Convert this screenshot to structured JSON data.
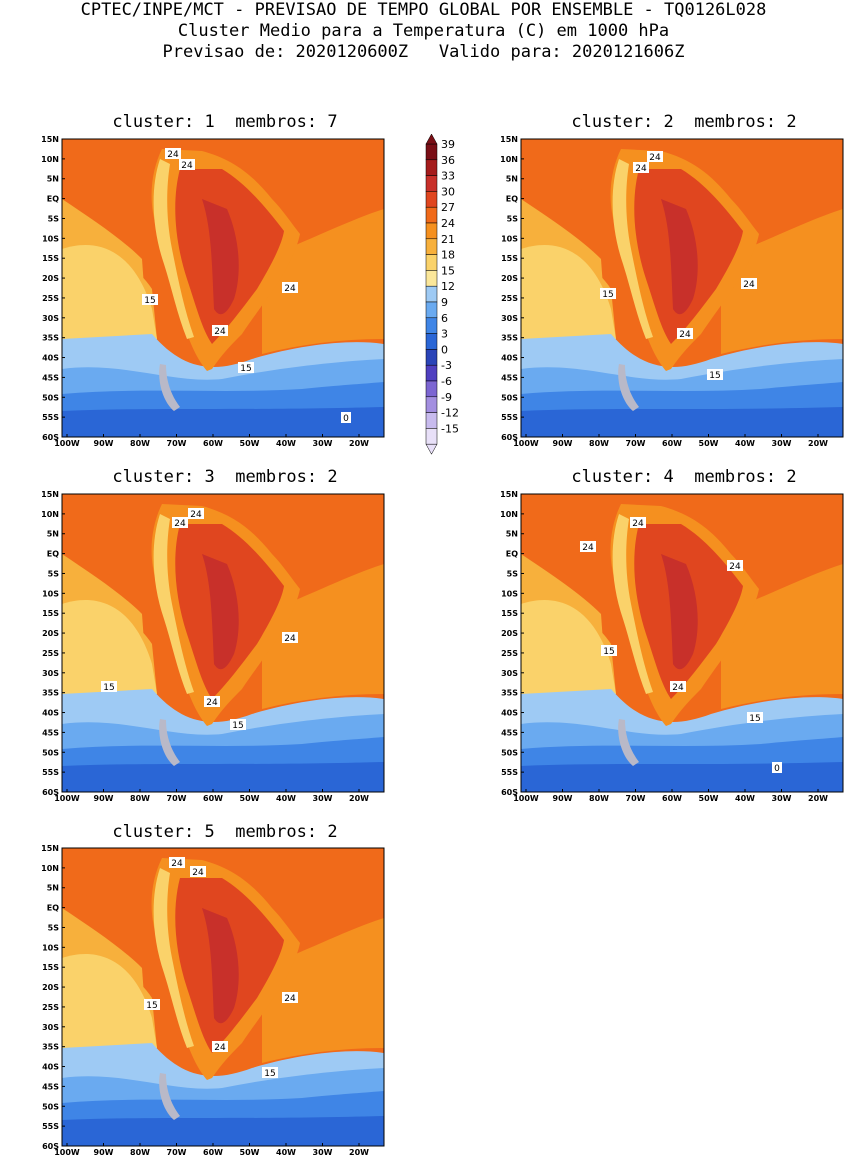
{
  "header": {
    "line1": "CPTEC/INPE/MCT - PREVISAO DE TEMPO GLOBAL POR ENSEMBLE - TQ0126L028",
    "line2": "Cluster Medio para a Temperatura (C) em 1000 hPa",
    "line3": "Previsao de: 2020120600Z   Valido para: 2020121606Z"
  },
  "panels": [
    {
      "title": "cluster: 1  membros: 7",
      "labels": [
        "24",
        "24",
        "24",
        "15",
        "24",
        "15",
        "0"
      ]
    },
    {
      "title": "cluster: 2  membros: 2",
      "labels": [
        "24",
        "24",
        "24",
        "15",
        "24",
        "15"
      ]
    },
    {
      "title": "cluster: 3  membros: 2",
      "labels": [
        "24",
        "24",
        "24",
        "15",
        "24",
        "15"
      ]
    },
    {
      "title": "cluster: 4  membros: 2",
      "labels": [
        "24",
        "24",
        "24",
        "15",
        "24",
        "15",
        "0"
      ]
    },
    {
      "title": "cluster: 5  membros: 2",
      "labels": [
        "24",
        "24",
        "24",
        "15",
        "24",
        "15"
      ]
    }
  ],
  "lat_ticks": [
    "15N",
    "10N",
    "5N",
    "EQ",
    "5S",
    "10S",
    "15S",
    "20S",
    "25S",
    "30S",
    "35S",
    "40S",
    "45S",
    "50S",
    "55S",
    "60S"
  ],
  "lon_ticks": [
    "100W",
    "90W",
    "80W",
    "70W",
    "60W",
    "50W",
    "40W",
    "30W",
    "20W"
  ],
  "colorbar": {
    "levels": [
      "39",
      "36",
      "33",
      "30",
      "27",
      "24",
      "21",
      "18",
      "15",
      "12",
      "9",
      "6",
      "3",
      "0",
      "-3",
      "-6",
      "-9",
      "-12",
      "-15"
    ],
    "colors": [
      "#7a0f16",
      "#a51c1c",
      "#c8302a",
      "#e0461f",
      "#f06a1a",
      "#f5901f",
      "#f7b03c",
      "#fad26a",
      "#fbe79a",
      "#9ecaf4",
      "#6aaaf0",
      "#3f85e6",
      "#2a66d6",
      "#2a44b8",
      "#4f3fc0",
      "#7c66d2",
      "#a38fe0",
      "#c8bbee",
      "#e8e0f8"
    ]
  }
}
